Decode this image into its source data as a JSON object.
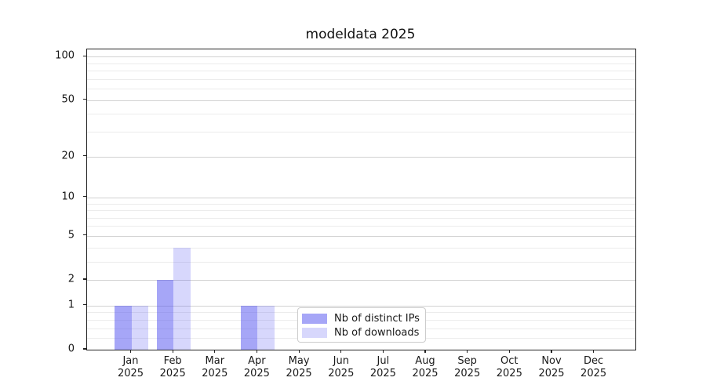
{
  "title": "modeldata 2025",
  "chart_data": {
    "type": "bar",
    "title": "modeldata 2025",
    "categories": [
      "Jan",
      "Feb",
      "Mar",
      "Apr",
      "May",
      "Jun",
      "Jul",
      "Aug",
      "Sep",
      "Oct",
      "Nov",
      "Dec"
    ],
    "category_year": "2025",
    "xlabel": "",
    "ylabel": "",
    "y_scale": "log1p",
    "ylim": [
      0,
      112.3
    ],
    "y_major_ticks": [
      0,
      1,
      2,
      5,
      10,
      20,
      50,
      100
    ],
    "y_minor_ticks": [
      0.2,
      0.4,
      0.6,
      0.8,
      3,
      4,
      6,
      7,
      8,
      9,
      30,
      40,
      60,
      70,
      80,
      90
    ],
    "grid": true,
    "legend_position": "lower center",
    "series": [
      {
        "name": "Nb of distinct IPs",
        "color": "rgba(84,84,240,0.52)",
        "values": [
          1,
          2,
          0,
          1,
          0,
          0,
          0,
          0,
          0,
          0,
          0,
          0
        ]
      },
      {
        "name": "Nb of downloads",
        "color": "rgba(84,84,240,0.23)",
        "values": [
          1,
          4,
          0,
          1,
          0,
          0,
          0,
          0,
          0,
          0,
          0,
          0
        ]
      }
    ]
  },
  "colors": {
    "major_grid": "#d2d2d2",
    "minor_grid": "#ececec",
    "spine": "#222222",
    "text": "#1a1a1a",
    "legend_border": "#cccccc"
  }
}
